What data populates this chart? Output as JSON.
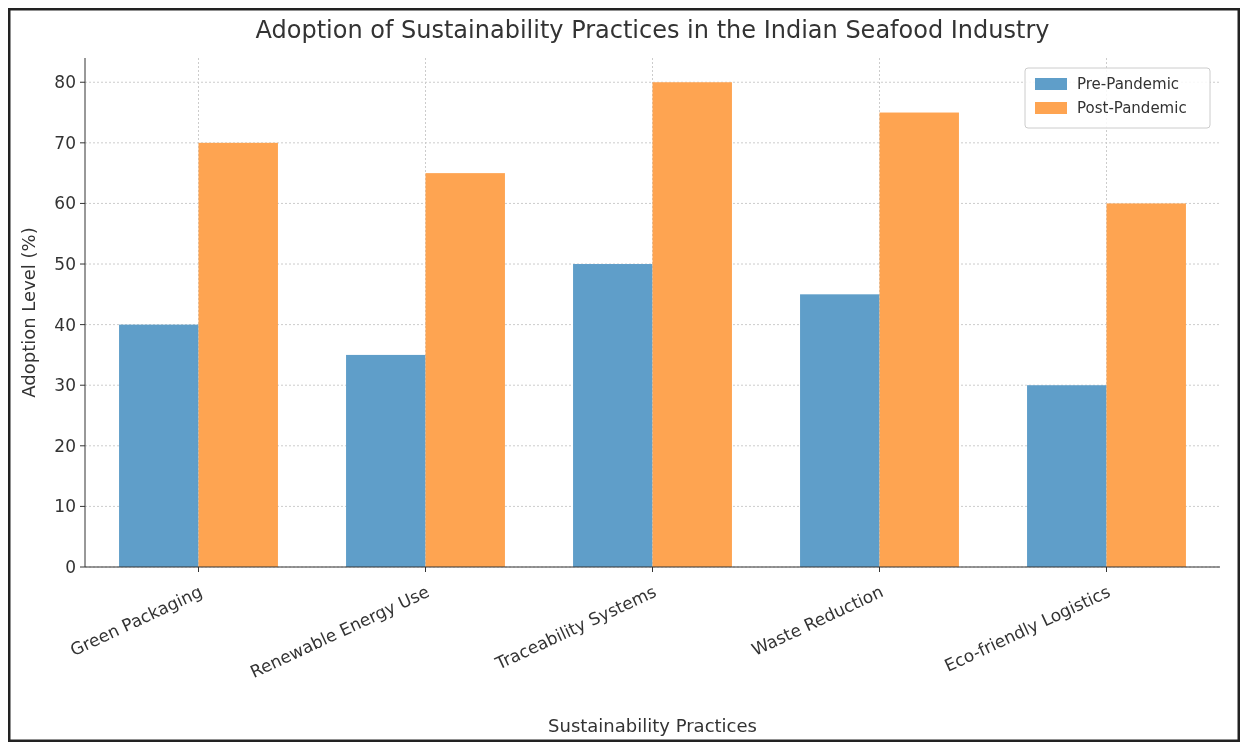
{
  "chart_data": {
    "type": "bar",
    "title": "Adoption of Sustainability Practices in the Indian Seafood Industry",
    "xlabel": "Sustainability Practices",
    "ylabel": "Adoption Level (%)",
    "categories": [
      "Green Packaging",
      "Renewable Energy Use",
      "Traceability Systems",
      "Waste Reduction",
      "Eco-friendly Logistics"
    ],
    "series": [
      {
        "name": "Pre-Pandemic",
        "color": "#5f9ec9",
        "values": [
          40,
          35,
          50,
          45,
          30
        ]
      },
      {
        "name": "Post-Pandemic",
        "color": "#fea451",
        "values": [
          70,
          65,
          80,
          75,
          60
        ]
      }
    ],
    "ylim": [
      0,
      84
    ],
    "yticks": [
      0,
      10,
      20,
      30,
      40,
      50,
      60,
      70,
      80
    ],
    "grid": true,
    "legend": "top right"
  }
}
